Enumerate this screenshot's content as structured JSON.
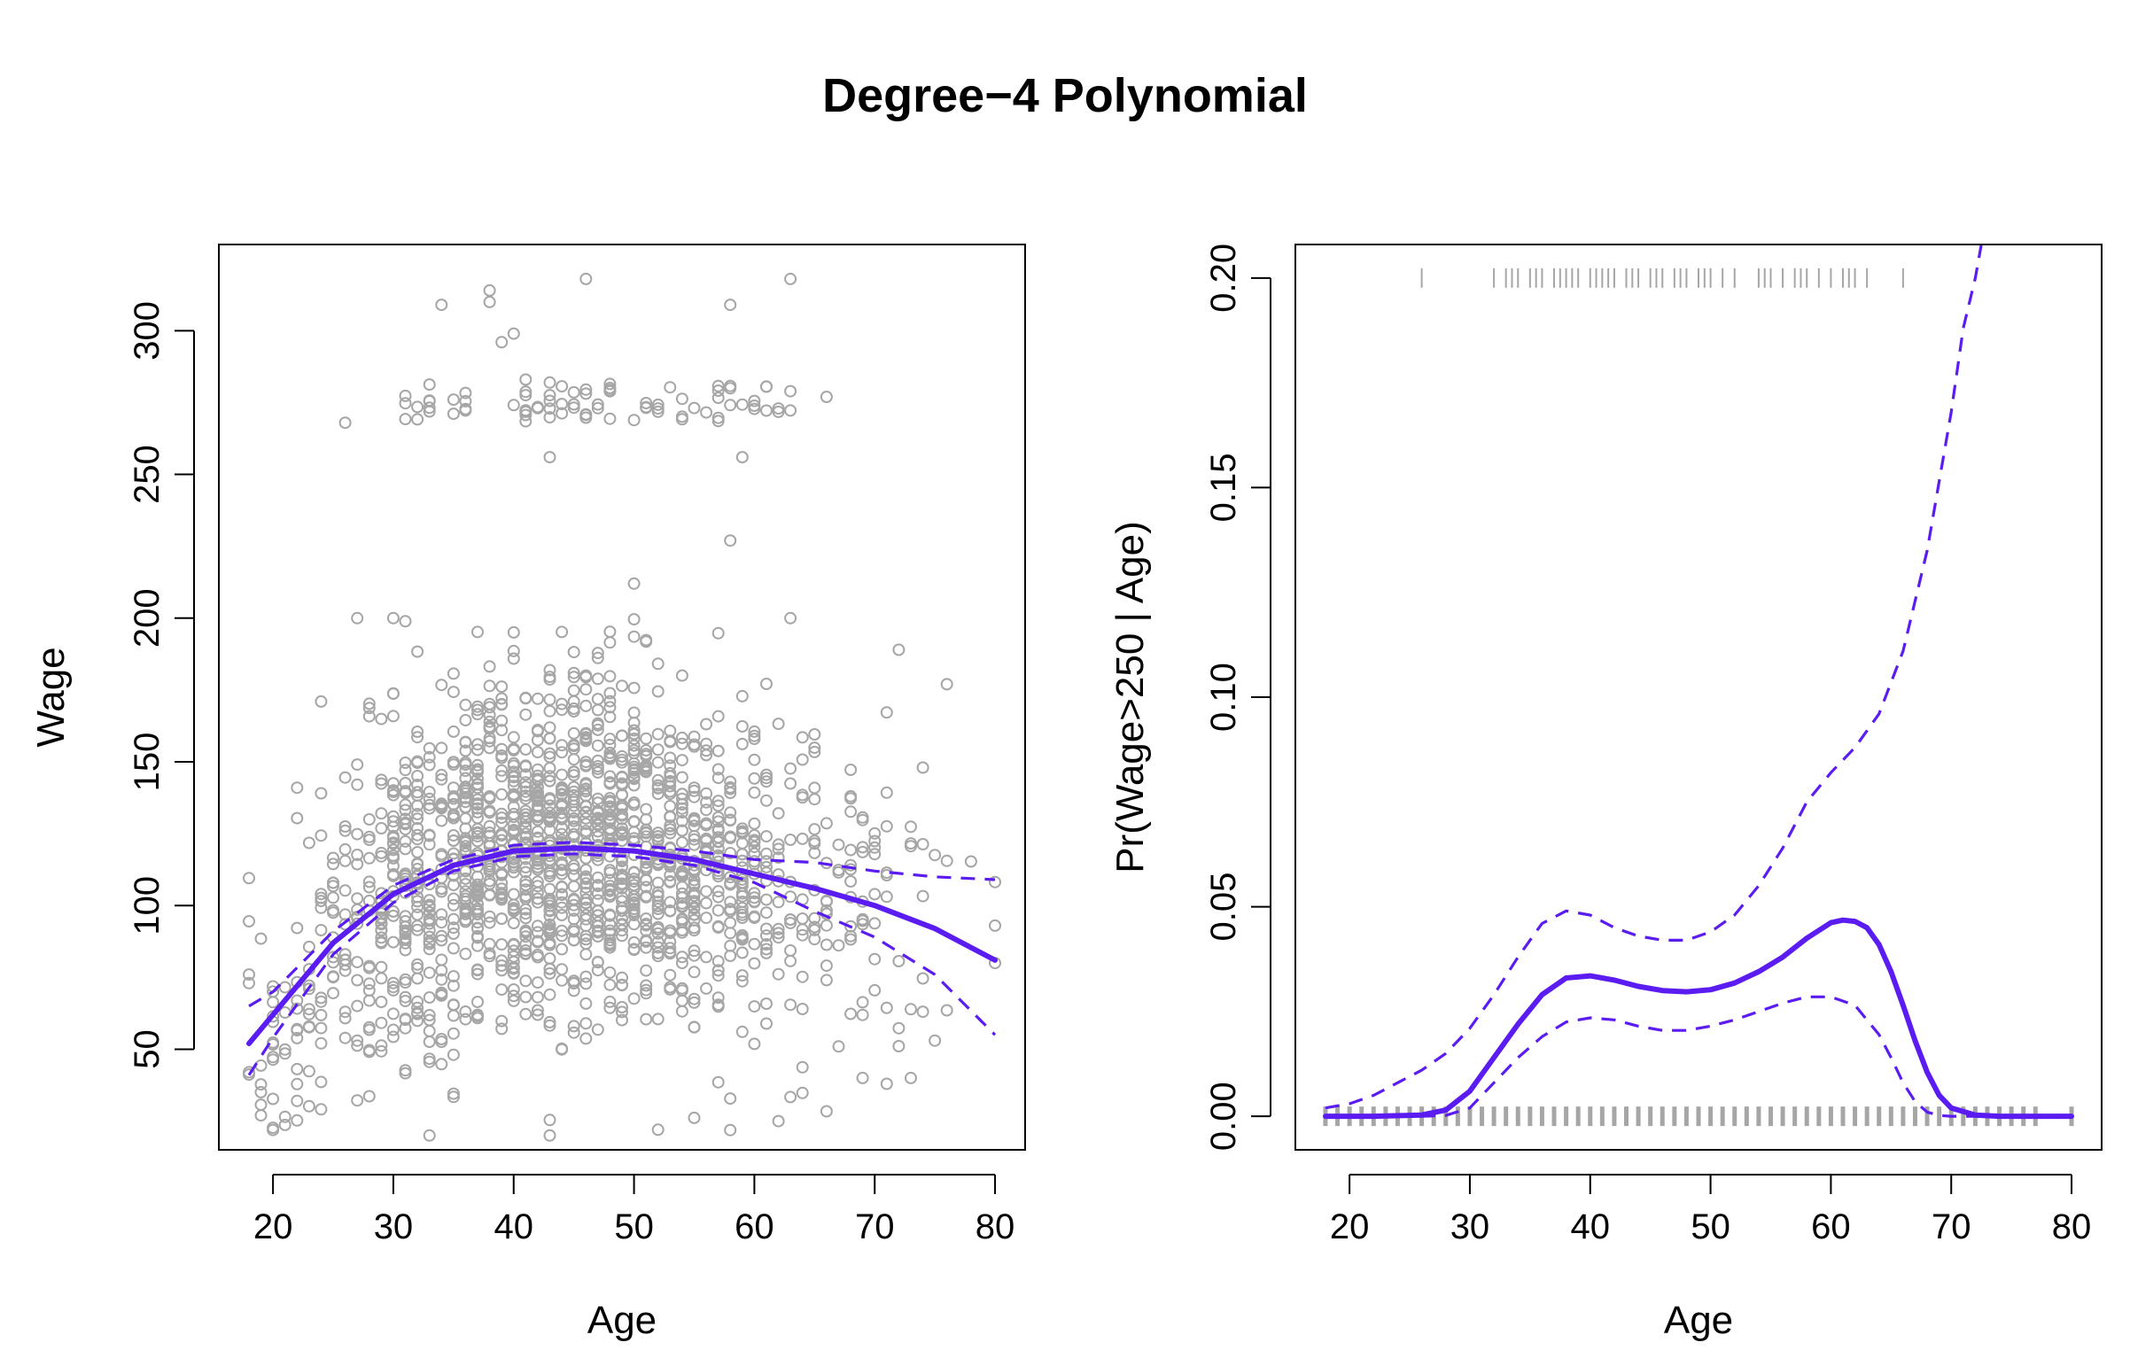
{
  "figure": {
    "title": "Degree−4 Polynomial"
  },
  "colors": {
    "fit": "#5B1CF2",
    "points": "#A6A6A6",
    "axis": "#000000"
  },
  "chart_data": [
    {
      "type": "scatter",
      "panel": "left",
      "xlabel": "Age",
      "ylabel": "Wage",
      "xlim": [
        15.5,
        82.5
      ],
      "ylim": [
        15,
        330
      ],
      "xticks": [
        "20",
        "30",
        "40",
        "50",
        "60",
        "70",
        "80"
      ],
      "yticks": [
        "50",
        "100",
        "150",
        "200",
        "250",
        "300"
      ],
      "xtick_values": [
        20,
        30,
        40,
        50,
        60,
        70,
        80
      ],
      "ytick_values": [
        50,
        100,
        150,
        200,
        250,
        300
      ],
      "grid": false,
      "legend": "none",
      "scatter": {
        "age_range": [
          18,
          80
        ],
        "points_approx": 3000,
        "sample_points": [
          {
            "x": 18,
            "y": 76
          },
          {
            "x": 18,
            "y": 42
          },
          {
            "x": 19,
            "y": 27
          },
          {
            "x": 22,
            "y": 141
          },
          {
            "x": 24,
            "y": 171
          },
          {
            "x": 26,
            "y": 268
          },
          {
            "x": 27,
            "y": 200
          },
          {
            "x": 30,
            "y": 200
          },
          {
            "x": 33,
            "y": 20
          },
          {
            "x": 34,
            "y": 309
          },
          {
            "x": 38,
            "y": 314
          },
          {
            "x": 38,
            "y": 310
          },
          {
            "x": 39,
            "y": 296
          },
          {
            "x": 40,
            "y": 299
          },
          {
            "x": 41,
            "y": 283
          },
          {
            "x": 43,
            "y": 256
          },
          {
            "x": 43,
            "y": 20
          },
          {
            "x": 46,
            "y": 318
          },
          {
            "x": 50,
            "y": 212
          },
          {
            "x": 52,
            "y": 22
          },
          {
            "x": 58,
            "y": 309
          },
          {
            "x": 58,
            "y": 227
          },
          {
            "x": 59,
            "y": 256
          },
          {
            "x": 62,
            "y": 25
          },
          {
            "x": 63,
            "y": 318
          },
          {
            "x": 63,
            "y": 200
          },
          {
            "x": 66,
            "y": 277
          },
          {
            "x": 72,
            "y": 189
          },
          {
            "x": 74,
            "y": 148
          },
          {
            "x": 76,
            "y": 177
          },
          {
            "x": 80,
            "y": 93
          },
          {
            "x": 80,
            "y": 80
          },
          {
            "x": 73,
            "y": 40
          },
          {
            "x": 69,
            "y": 40
          },
          {
            "x": 75,
            "y": 53
          }
        ]
      },
      "series": [
        {
          "role": "fit",
          "style": "solid",
          "x": [
            18,
            20,
            25,
            30,
            35,
            40,
            45,
            50,
            55,
            60,
            65,
            70,
            75,
            80
          ],
          "y": [
            52,
            62,
            87,
            104,
            114,
            119,
            120,
            119,
            116,
            111,
            106,
            100,
            92,
            81
          ]
        },
        {
          "role": "upper-band",
          "style": "dashed",
          "x": [
            18,
            20,
            25,
            30,
            35,
            40,
            45,
            50,
            55,
            60,
            65,
            70,
            75,
            80
          ],
          "y": [
            65,
            70,
            91,
            107,
            116,
            121,
            122,
            121,
            119,
            116,
            115,
            112,
            110,
            109
          ]
        },
        {
          "role": "lower-band",
          "style": "dashed",
          "x": [
            18,
            20,
            25,
            30,
            35,
            40,
            45,
            50,
            55,
            60,
            65,
            70,
            75,
            80
          ],
          "y": [
            41,
            54,
            83,
            101,
            112,
            117,
            118,
            117,
            114,
            108,
            98,
            89,
            76,
            55
          ]
        }
      ]
    },
    {
      "type": "line",
      "panel": "right",
      "xlabel": "Age",
      "ylabel": "Pr(Wage>250 | Age)",
      "xlim": [
        15.5,
        82.5
      ],
      "ylim": [
        -0.008,
        0.208
      ],
      "xticks": [
        "20",
        "30",
        "40",
        "50",
        "60",
        "70",
        "80"
      ],
      "yticks": [
        "0.00",
        "0.05",
        "0.10",
        "0.15",
        "0.20"
      ],
      "xtick_values": [
        20,
        30,
        40,
        50,
        60,
        70,
        80
      ],
      "ytick_values": [
        0,
        0.05,
        0.1,
        0.15,
        0.2
      ],
      "grid": false,
      "legend": "none",
      "rug_top": {
        "y": 0.2,
        "ages": [
          26,
          32,
          33,
          33.5,
          34,
          35,
          35.5,
          36,
          37,
          37.5,
          38,
          38.5,
          39,
          40,
          40.5,
          41,
          41.5,
          42,
          43,
          43.5,
          44,
          45,
          45.5,
          46,
          47,
          47.5,
          48,
          49,
          49.5,
          50,
          51,
          52,
          54,
          54.5,
          55,
          56,
          57,
          57.5,
          58,
          59,
          60,
          61,
          61.5,
          62,
          63,
          66
        ]
      },
      "rug_bottom": {
        "y": 0.0,
        "ages": [
          18,
          19,
          20,
          21,
          22,
          23,
          24,
          25,
          26,
          27,
          28,
          29,
          30,
          31,
          32,
          33,
          34,
          35,
          36,
          37,
          38,
          39,
          40,
          41,
          42,
          43,
          44,
          45,
          46,
          47,
          48,
          49,
          50,
          51,
          52,
          53,
          54,
          55,
          56,
          57,
          58,
          59,
          60,
          61,
          62,
          63,
          64,
          65,
          66,
          67,
          68,
          69,
          70,
          71,
          72,
          73,
          74,
          75,
          76,
          77,
          80
        ]
      },
      "series": [
        {
          "role": "fit",
          "style": "solid",
          "x": [
            18,
            22,
            26,
            28,
            30,
            32,
            34,
            36,
            38,
            40,
            42,
            44,
            46,
            48,
            50,
            52,
            54,
            56,
            58,
            60,
            61,
            62,
            63,
            64,
            65,
            66,
            67,
            68,
            69,
            70,
            72,
            74,
            76,
            80
          ],
          "y": [
            0.0,
            0.0,
            0.0003,
            0.0015,
            0.006,
            0.014,
            0.022,
            0.029,
            0.033,
            0.0335,
            0.0325,
            0.031,
            0.03,
            0.0297,
            0.0302,
            0.0318,
            0.0345,
            0.038,
            0.0425,
            0.0462,
            0.0468,
            0.0465,
            0.045,
            0.041,
            0.0345,
            0.0265,
            0.018,
            0.0105,
            0.005,
            0.002,
            0.0003,
            0.0,
            0.0,
            0.0
          ]
        },
        {
          "role": "upper-band",
          "style": "dashed",
          "x": [
            18,
            20,
            22,
            24,
            26,
            28,
            30,
            32,
            34,
            36,
            38,
            40,
            42,
            44,
            46,
            48,
            50,
            52,
            54,
            56,
            58,
            60,
            62,
            64,
            66,
            68,
            70,
            71,
            72,
            72.5
          ],
          "y": [
            0.002,
            0.003,
            0.005,
            0.008,
            0.011,
            0.015,
            0.021,
            0.029,
            0.038,
            0.046,
            0.049,
            0.048,
            0.045,
            0.043,
            0.042,
            0.042,
            0.044,
            0.048,
            0.055,
            0.064,
            0.075,
            0.082,
            0.088,
            0.096,
            0.111,
            0.135,
            0.168,
            0.188,
            0.2,
            0.208
          ]
        },
        {
          "role": "lower-band",
          "style": "dashed",
          "x": [
            18,
            26,
            28,
            30,
            32,
            34,
            36,
            38,
            40,
            42,
            44,
            46,
            48,
            50,
            52,
            54,
            56,
            58,
            60,
            62,
            64,
            65,
            66,
            67,
            68,
            69,
            70,
            72,
            76,
            80
          ],
          "y": [
            0.0,
            0.0,
            0.0002,
            0.002,
            0.008,
            0.014,
            0.019,
            0.0225,
            0.0235,
            0.023,
            0.0215,
            0.0205,
            0.0205,
            0.0215,
            0.023,
            0.025,
            0.027,
            0.0285,
            0.0285,
            0.0265,
            0.0195,
            0.014,
            0.008,
            0.0035,
            0.001,
            0.0002,
            0.0,
            0.0,
            0.0,
            0.0
          ]
        }
      ]
    }
  ]
}
